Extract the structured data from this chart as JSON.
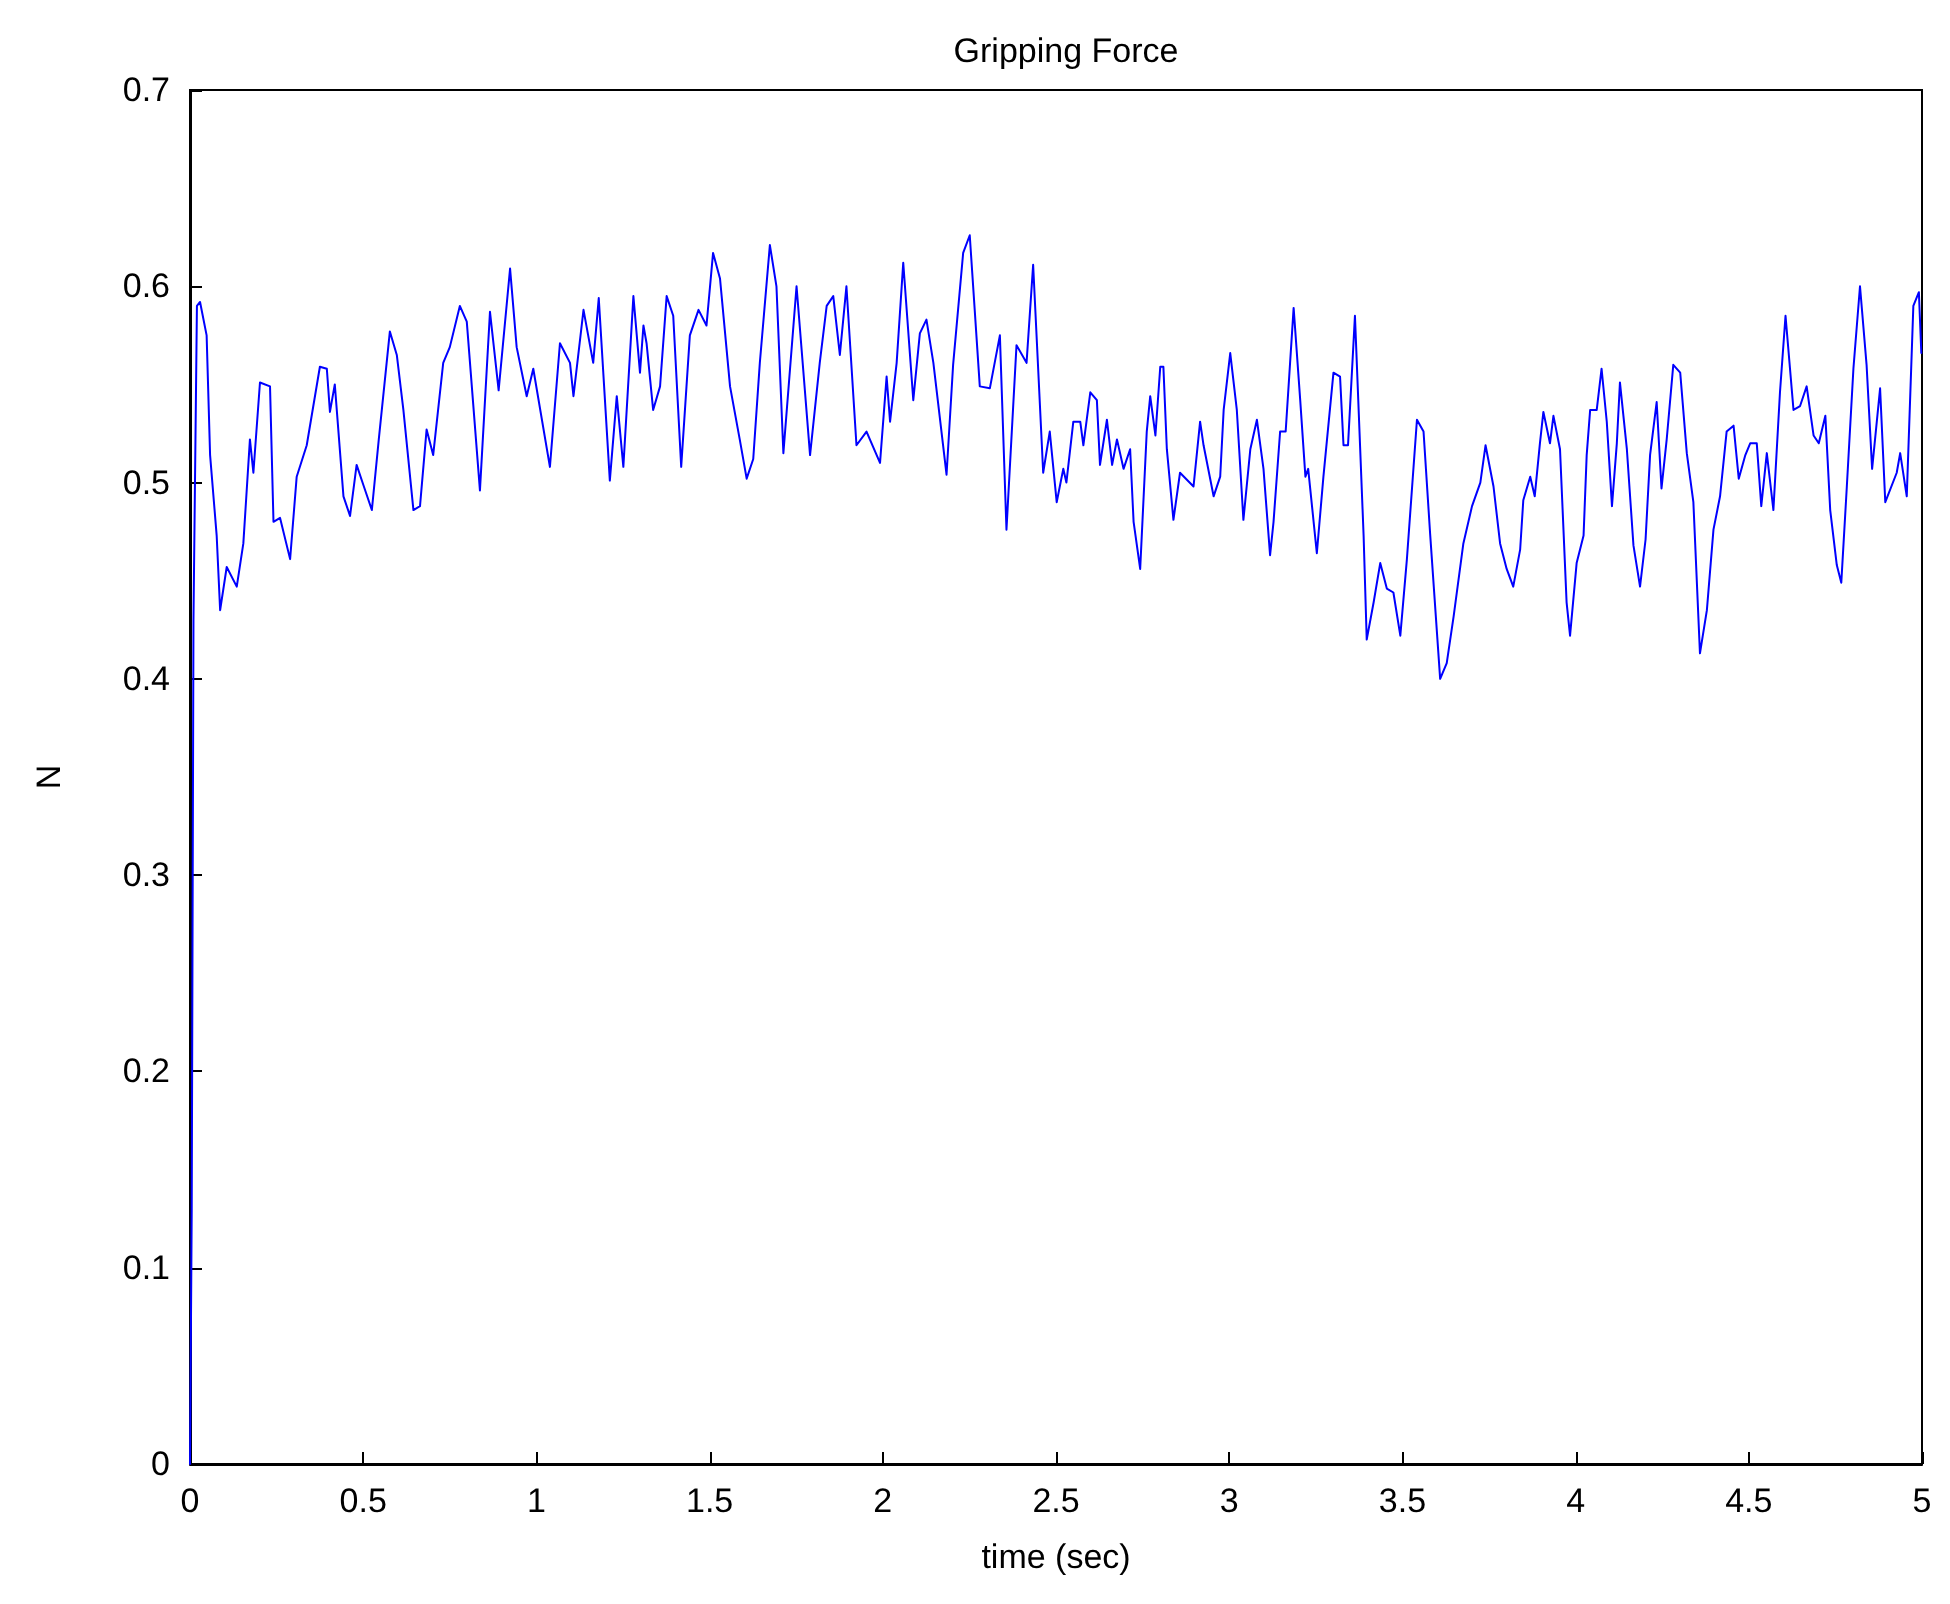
{
  "chart_data": {
    "type": "line",
    "title": "Gripping Force",
    "xlabel": "time (sec)",
    "ylabel": "N",
    "xlim": [
      0,
      5
    ],
    "xticks": [
      0,
      0.5,
      1,
      1.5,
      2,
      2.5,
      3,
      3.5,
      4,
      4.5,
      5
    ],
    "ylim": [
      0,
      0.7
    ],
    "yticks": [
      0,
      0.1,
      0.2,
      0.3,
      0.4,
      0.5,
      0.6,
      0.7
    ],
    "grid": false,
    "marker": "none",
    "line_style": "solid",
    "series": [
      {
        "color": "#0000ff",
        "x": [
          0,
          0.005,
          0.01,
          0.02,
          0.029,
          0.048,
          0.058,
          0.077,
          0.087,
          0.106,
          0.135,
          0.154,
          0.173,
          0.183,
          0.202,
          0.231,
          0.241,
          0.26,
          0.289,
          0.308,
          0.337,
          0.375,
          0.395,
          0.404,
          0.418,
          0.443,
          0.462,
          0.481,
          0.5,
          0.525,
          0.545,
          0.577,
          0.597,
          0.616,
          0.645,
          0.664,
          0.683,
          0.702,
          0.731,
          0.75,
          0.779,
          0.799,
          0.837,
          0.866,
          0.891,
          0.924,
          0.943,
          0.972,
          0.991,
          1.039,
          1.068,
          1.097,
          1.107,
          1.136,
          1.164,
          1.18,
          1.212,
          1.232,
          1.251,
          1.28,
          1.299,
          1.309,
          1.318,
          1.337,
          1.357,
          1.376,
          1.395,
          1.418,
          1.443,
          1.468,
          1.491,
          1.51,
          1.53,
          1.559,
          1.587,
          1.607,
          1.626,
          1.645,
          1.674,
          1.693,
          1.713,
          1.751,
          1.79,
          1.818,
          1.838,
          1.857,
          1.876,
          1.895,
          1.924,
          1.953,
          1.992,
          2.011,
          2.021,
          2.04,
          2.059,
          2.088,
          2.107,
          2.126,
          2.146,
          2.184,
          2.203,
          2.232,
          2.251,
          2.28,
          2.309,
          2.338,
          2.357,
          2.386,
          2.415,
          2.434,
          2.463,
          2.482,
          2.502,
          2.521,
          2.53,
          2.55,
          2.57,
          2.579,
          2.599,
          2.618,
          2.627,
          2.647,
          2.662,
          2.676,
          2.695,
          2.714,
          2.724,
          2.743,
          2.762,
          2.772,
          2.787,
          2.801,
          2.81,
          2.82,
          2.839,
          2.858,
          2.897,
          2.916,
          2.926,
          2.955,
          2.974,
          2.984,
          3.003,
          3.022,
          3.041,
          3.061,
          3.08,
          3.099,
          3.118,
          3.128,
          3.147,
          3.163,
          3.186,
          3.205,
          3.22,
          3.228,
          3.253,
          3.272,
          3.301,
          3.32,
          3.33,
          3.343,
          3.363,
          3.388,
          3.397,
          3.417,
          3.436,
          3.455,
          3.474,
          3.494,
          3.513,
          3.542,
          3.561,
          3.58,
          3.609,
          3.628,
          3.648,
          3.676,
          3.701,
          3.725,
          3.74,
          3.763,
          3.782,
          3.801,
          3.82,
          3.84,
          3.849,
          3.869,
          3.882,
          3.897,
          3.907,
          3.926,
          3.936,
          3.955,
          3.974,
          3.984,
          4.003,
          4.023,
          4.032,
          4.042,
          4.061,
          4.075,
          4.09,
          4.105,
          4.119,
          4.128,
          4.148,
          4.167,
          4.186,
          4.202,
          4.215,
          4.234,
          4.248,
          4.263,
          4.282,
          4.302,
          4.321,
          4.34,
          4.359,
          4.379,
          4.398,
          4.417,
          4.436,
          4.456,
          4.471,
          4.49,
          4.504,
          4.523,
          4.536,
          4.552,
          4.571,
          4.59,
          4.606,
          4.629,
          4.648,
          4.667,
          4.687,
          4.702,
          4.721,
          4.735,
          4.754,
          4.767,
          4.783,
          4.802,
          4.821,
          4.84,
          4.856,
          4.879,
          4.894,
          4.927,
          4.937,
          4.956,
          4.975,
          4.991,
          4.998
        ],
        "values": [
          0,
          0.13,
          0.43,
          0.59,
          0.592,
          0.575,
          0.514,
          0.473,
          0.435,
          0.457,
          0.447,
          0.469,
          0.522,
          0.505,
          0.551,
          0.549,
          0.48,
          0.482,
          0.461,
          0.503,
          0.519,
          0.559,
          0.558,
          0.536,
          0.55,
          0.493,
          0.483,
          0.509,
          0.499,
          0.486,
          0.522,
          0.577,
          0.565,
          0.537,
          0.486,
          0.488,
          0.527,
          0.514,
          0.561,
          0.569,
          0.59,
          0.582,
          0.496,
          0.587,
          0.547,
          0.609,
          0.569,
          0.544,
          0.558,
          0.508,
          0.571,
          0.561,
          0.544,
          0.588,
          0.561,
          0.594,
          0.501,
          0.544,
          0.508,
          0.595,
          0.556,
          0.58,
          0.571,
          0.537,
          0.549,
          0.595,
          0.585,
          0.508,
          0.575,
          0.588,
          0.58,
          0.617,
          0.604,
          0.549,
          0.522,
          0.502,
          0.512,
          0.561,
          0.621,
          0.6,
          0.515,
          0.6,
          0.514,
          0.561,
          0.59,
          0.595,
          0.565,
          0.6,
          0.519,
          0.526,
          0.51,
          0.554,
          0.531,
          0.561,
          0.612,
          0.542,
          0.576,
          0.583,
          0.561,
          0.504,
          0.56,
          0.617,
          0.626,
          0.549,
          0.548,
          0.575,
          0.476,
          0.57,
          0.561,
          0.611,
          0.505,
          0.526,
          0.49,
          0.507,
          0.5,
          0.531,
          0.531,
          0.519,
          0.546,
          0.542,
          0.509,
          0.532,
          0.509,
          0.522,
          0.507,
          0.517,
          0.48,
          0.456,
          0.526,
          0.544,
          0.524,
          0.559,
          0.559,
          0.517,
          0.481,
          0.505,
          0.498,
          0.531,
          0.519,
          0.493,
          0.503,
          0.537,
          0.566,
          0.537,
          0.481,
          0.517,
          0.532,
          0.507,
          0.463,
          0.48,
          0.526,
          0.526,
          0.589,
          0.542,
          0.503,
          0.507,
          0.464,
          0.503,
          0.556,
          0.554,
          0.519,
          0.519,
          0.585,
          0.473,
          0.42,
          0.439,
          0.459,
          0.446,
          0.444,
          0.422,
          0.461,
          0.532,
          0.526,
          0.474,
          0.4,
          0.408,
          0.432,
          0.469,
          0.488,
          0.5,
          0.519,
          0.498,
          0.469,
          0.456,
          0.447,
          0.466,
          0.491,
          0.503,
          0.493,
          0.52,
          0.536,
          0.52,
          0.534,
          0.517,
          0.439,
          0.422,
          0.459,
          0.473,
          0.514,
          0.537,
          0.537,
          0.558,
          0.531,
          0.488,
          0.52,
          0.551,
          0.517,
          0.468,
          0.447,
          0.471,
          0.514,
          0.541,
          0.497,
          0.522,
          0.56,
          0.556,
          0.515,
          0.49,
          0.413,
          0.435,
          0.476,
          0.493,
          0.526,
          0.529,
          0.502,
          0.514,
          0.52,
          0.52,
          0.488,
          0.515,
          0.486,
          0.546,
          0.585,
          0.537,
          0.539,
          0.549,
          0.524,
          0.52,
          0.534,
          0.486,
          0.458,
          0.449,
          0.498,
          0.558,
          0.6,
          0.56,
          0.507,
          0.548,
          0.49,
          0.505,
          0.515,
          0.493,
          0.59,
          0.597,
          0.566
        ]
      }
    ]
  }
}
